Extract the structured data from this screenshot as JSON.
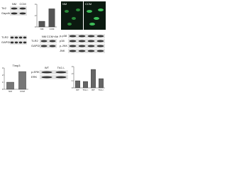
{
  "blots": [
    {
      "lanes": [
        "NM",
        "CCM"
      ],
      "rows": [
        "Tlr2",
        "Gapdh"
      ]
    },
    {
      "rows": [
        "TLR2",
        "GAPDH"
      ]
    },
    {
      "lanes": [
        "NM",
        "CCM+Ab"
      ],
      "rows": [
        "TLR2",
        "GAPDH"
      ]
    },
    {
      "rows": [
        "p-p38",
        "p38",
        "p-JNK",
        "JNK"
      ]
    },
    {
      "lanes": [
        "WT",
        "Tlr2-/-"
      ],
      "rows": [
        "p-ERK",
        "ERK"
      ]
    }
  ],
  "images": {
    "labels": [
      "NM",
      "CCM"
    ]
  },
  "charts": [
    {
      "type": "bar",
      "categories": [
        "NM",
        "CCM"
      ],
      "values": [
        1,
        3.2
      ],
      "ylim": [
        0,
        4
      ],
      "yticks": [
        0,
        2,
        4
      ],
      "color": "#555555"
    },
    {
      "type": "bar",
      "title": "Timp3",
      "categories": [
        "NM",
        "CCM"
      ],
      "values": [
        1,
        2.5
      ],
      "ylim": [
        0,
        3
      ],
      "yticks": [
        0,
        1,
        2,
        3
      ],
      "color": "#777777"
    },
    {
      "type": "bar",
      "categories": [
        "WT",
        "Tlr2-/-",
        "WT",
        "Tlr2-/-"
      ],
      "values": [
        1,
        0.9,
        2.6,
        1.3
      ],
      "ylim": [
        0,
        3
      ],
      "yticks": [
        0,
        1,
        2,
        3
      ],
      "color": "#666666"
    }
  ]
}
